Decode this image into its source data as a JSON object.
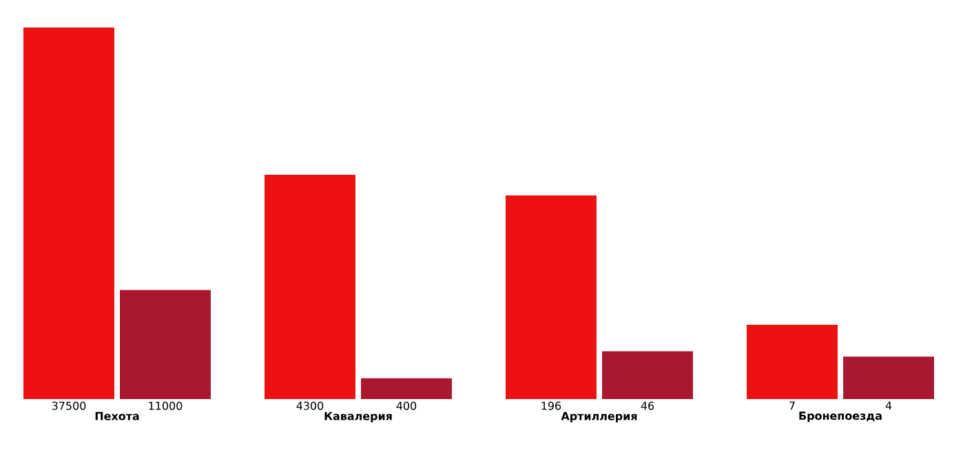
{
  "chart_data": [
    {
      "type": "bar",
      "categories": [
        null,
        null
      ],
      "values": [
        37500,
        11000
      ],
      "colors": [
        "#ed1111",
        "#a91830"
      ],
      "data_labels": true,
      "xlabel": "Пехота"
    },
    {
      "type": "bar",
      "categories": [
        null,
        null
      ],
      "values": [
        4300,
        400
      ],
      "colors": [
        "#ed1111",
        "#a91830"
      ],
      "data_labels": true,
      "xlabel": "Кавалерия"
    },
    {
      "type": "bar",
      "categories": [
        null,
        null
      ],
      "values": [
        196,
        46
      ],
      "colors": [
        "#ed1111",
        "#a91830"
      ],
      "data_labels": true,
      "xlabel": "Артиллерия"
    },
    {
      "type": "bar",
      "categories": [
        null,
        null
      ],
      "values": [
        7,
        4
      ],
      "colors": [
        "#ed1111",
        "#a91830"
      ],
      "data_labels": true,
      "xlabel": "Бронепоезда"
    }
  ]
}
